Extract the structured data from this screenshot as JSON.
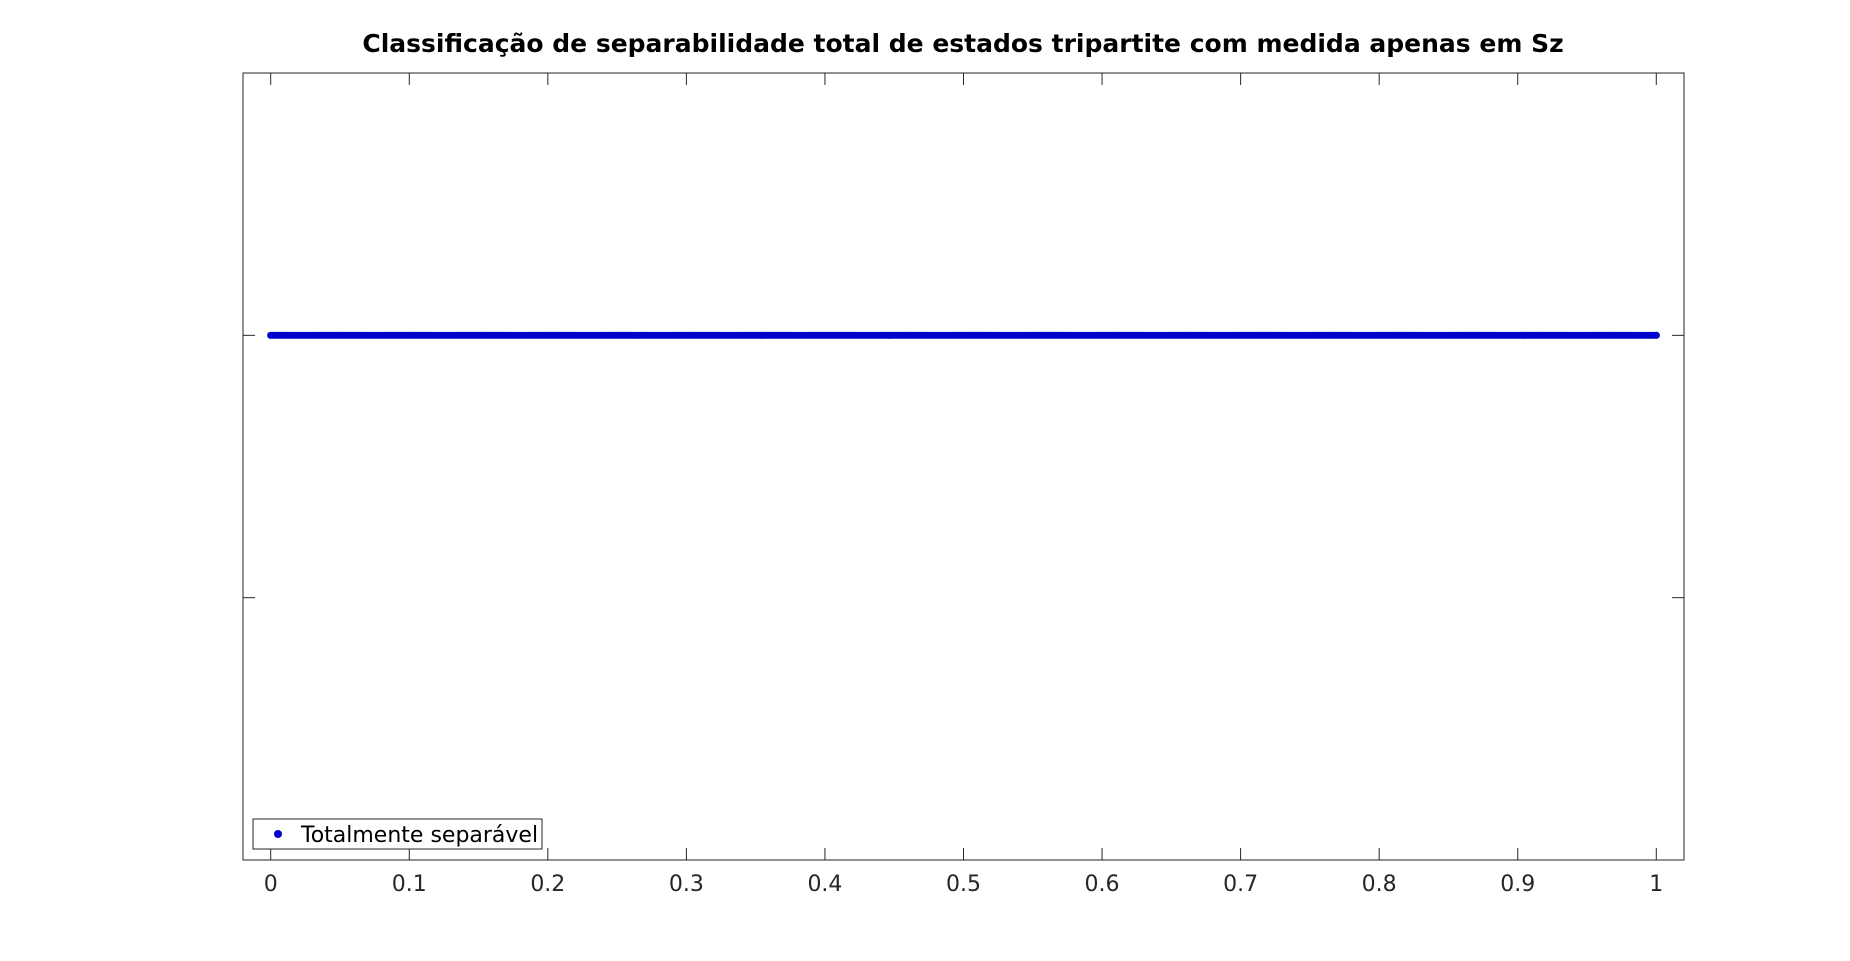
{
  "chart_data": {
    "type": "scatter",
    "title": "Classificação de separabilidade total de estados tripartite com medida apenas em Sz",
    "xlabel": "",
    "ylabel": "",
    "xlim": [
      -0.02,
      1.02
    ],
    "ylim": [
      0,
      3
    ],
    "x_ticks": [
      0,
      0.1,
      0.2,
      0.3,
      0.4,
      0.5,
      0.6,
      0.7,
      0.8,
      0.9,
      1
    ],
    "x_tick_labels": [
      "0",
      "0.1",
      "0.2",
      "0.3",
      "0.4",
      "0.5",
      "0.6",
      "0.7",
      "0.8",
      "0.9",
      "1"
    ],
    "y_ticks": [
      1,
      2
    ],
    "y_tick_labels": [
      "",
      ""
    ],
    "grid": false,
    "legend_position": "bottom-left",
    "series": [
      {
        "name": "Totalmente separável",
        "color": "#0000cc",
        "marker": "dot",
        "x_range": [
          0,
          1
        ],
        "x_step": 0.002,
        "y": 2
      }
    ]
  }
}
